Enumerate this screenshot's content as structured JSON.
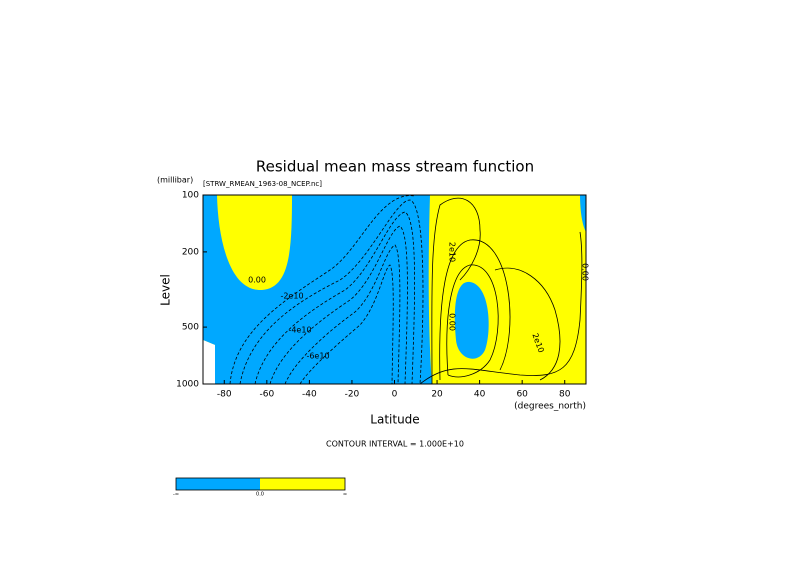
{
  "chart_data": {
    "type": "contour",
    "title": "Residual mean mass stream function",
    "subtitle": "[STRW_RMEAN_1963-08_NCEP.nc]",
    "y_unit": "(millibar)",
    "x_unit": "(degrees_north)",
    "xlabel": "Latitude",
    "ylabel": "Level",
    "xlim": [
      -90,
      90
    ],
    "ylim": [
      1000,
      100
    ],
    "yscale": "log",
    "xticks": [
      -80,
      -60,
      -40,
      -20,
      0,
      20,
      40,
      60,
      80
    ],
    "yticks": [
      100,
      200,
      500,
      1000
    ],
    "footnote": "CONTOUR INTERVAL = 1.000E+10",
    "colors": {
      "negative": "#00a8ff",
      "positive": "#ffff00"
    },
    "colorbar_labels": [
      "-∞",
      "0.0",
      "∞"
    ],
    "contour_labels": [
      "0.00",
      "-2e10",
      "-4e10",
      "-6e10",
      "2e10",
      "0.00",
      "2e10",
      "0.00"
    ]
  }
}
